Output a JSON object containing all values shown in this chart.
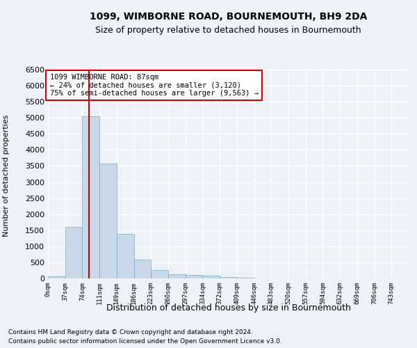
{
  "title1": "1099, WIMBORNE ROAD, BOURNEMOUTH, BH9 2DA",
  "title2": "Size of property relative to detached houses in Bournemouth",
  "xlabel": "Distribution of detached houses by size in Bournemouth",
  "ylabel": "Number of detached properties",
  "annotation_line1": "1099 WIMBORNE ROAD: 87sqm",
  "annotation_line2": "← 24% of detached houses are smaller (3,120)",
  "annotation_line3": "75% of semi-detached houses are larger (9,563) →",
  "footer1": "Contains HM Land Registry data © Crown copyright and database right 2024.",
  "footer2": "Contains public sector information licensed under the Open Government Licence v3.0.",
  "bin_labels": [
    "0sqm",
    "37sqm",
    "74sqm",
    "111sqm",
    "149sqm",
    "186sqm",
    "223sqm",
    "260sqm",
    "297sqm",
    "334sqm",
    "372sqm",
    "409sqm",
    "446sqm",
    "483sqm",
    "520sqm",
    "557sqm",
    "594sqm",
    "632sqm",
    "669sqm",
    "706sqm",
    "743sqm"
  ],
  "bar_values": [
    60,
    1600,
    5050,
    3570,
    1380,
    590,
    260,
    130,
    100,
    80,
    50,
    30,
    10,
    5,
    2,
    1,
    0,
    0,
    0,
    0,
    0
  ],
  "bar_color": "#c8d8e8",
  "bar_edge_color": "#7aaac8",
  "property_line_x": 2.37,
  "ylim": [
    0,
    6500
  ],
  "yticks": [
    0,
    500,
    1000,
    1500,
    2000,
    2500,
    3000,
    3500,
    4000,
    4500,
    5000,
    5500,
    6000,
    6500
  ],
  "background_color": "#eef2f8",
  "plot_bg_color": "#eef2f8",
  "grid_color": "#ffffff",
  "annotation_box_color": "#ffffff",
  "annotation_box_edge": "#cc0000",
  "property_line_color": "#cc0000"
}
